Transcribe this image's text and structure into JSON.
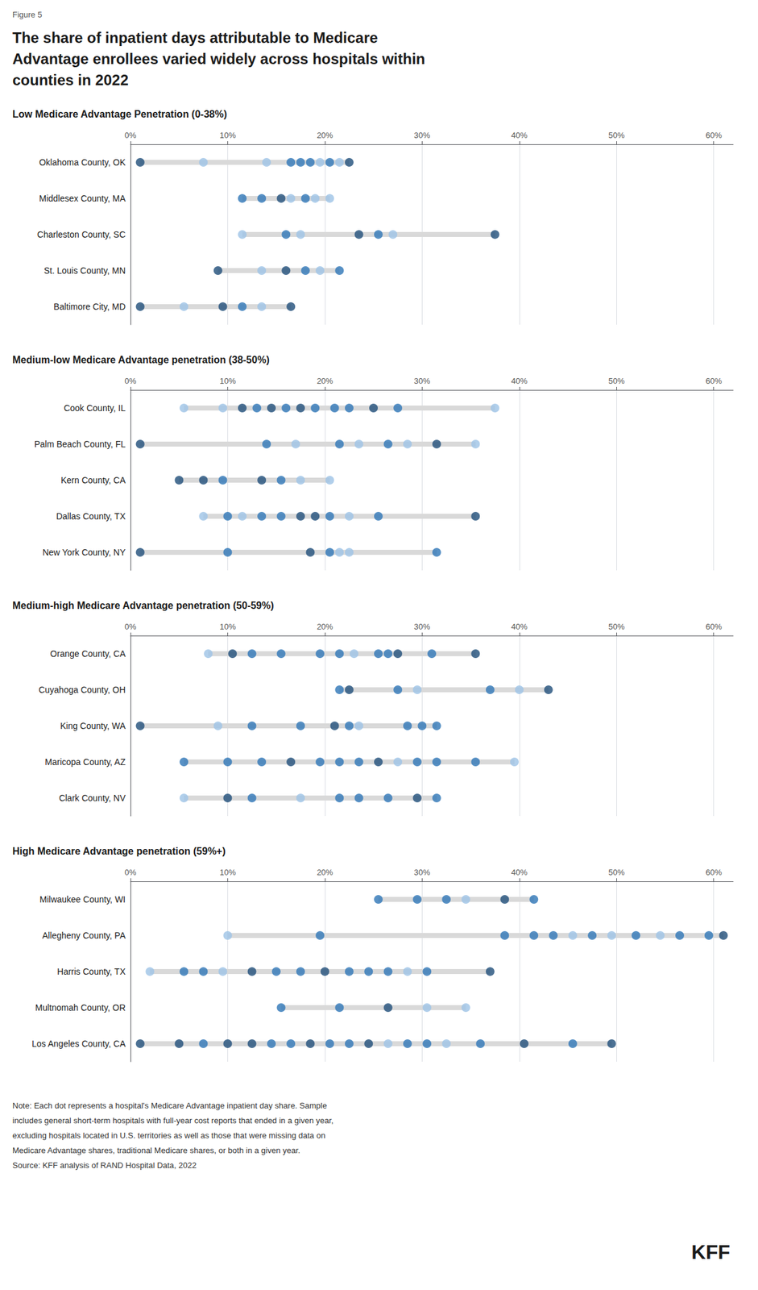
{
  "title": [
    "The share of inpatient days attributable to Medicare",
    "Advantage enrollees varied widely across hospitals within",
    "counties in 2022"
  ],
  "subtitle": "Figure 5",
  "annotations": [
    "Note: Each dot represents a hospital's Medicare Advantage inpatient day share. Sample",
    "includes general short-term hospitals with full-year cost reports that ended in a given year,",
    "excluding hospitals located in U.S. territories as well as those that were missing data on",
    "Medicare Advantage shares, traditional Medicare shares, or both in a given year.",
    "Source: KFF analysis of RAND Hospital Data, 2022",
    "KFF"
  ],
  "chart_data": [
    {
      "type": "scatter",
      "orientation": "horizontal",
      "grid": true,
      "color": "#d9d9d9",
      "title": "Low Medicare Advantage Penetration (0-38%)",
      "xlim": [
        0,
        0.62
      ],
      "xticks": [
        {
          "value": 0.0,
          "label": "0%"
        },
        {
          "value": 0.1,
          "label": "10%"
        },
        {
          "value": 0.2,
          "label": "20%"
        },
        {
          "value": 0.3,
          "label": "30%"
        },
        {
          "value": 0.4,
          "label": "40%"
        },
        {
          "value": 0.5,
          "label": "50%"
        },
        {
          "value": 0.6,
          "label": "60%"
        }
      ],
      "categories": [
        "Oklahoma County, OK",
        "Middlesex County, MA",
        "Charleston County, SC",
        "St. Louis County, MN",
        "Baltimore City, MD"
      ],
      "values": [
        [
          0.01,
          0.075,
          0.14,
          0.165,
          0.175,
          0.185,
          0.195,
          0.205,
          0.215,
          0.225
        ],
        [
          0.115,
          0.135,
          0.155,
          0.165,
          0.18,
          0.19,
          0.205
        ],
        [
          0.115,
          0.16,
          0.175,
          0.235,
          0.255,
          0.27,
          0.375
        ],
        [
          0.09,
          0.135,
          0.16,
          0.18,
          0.195,
          0.215
        ],
        [
          0.01,
          0.055,
          0.095,
          0.115,
          0.135,
          0.165
        ]
      ],
      "colors": [
        [
          "#1f4e79",
          "#9dc3e6",
          "#9dc3e6",
          "#2e75b6",
          "#2e75b6",
          "#2e75b6",
          "#9dc3e6",
          "#2e75b6",
          "#9dc3e6",
          "#1f4e79"
        ],
        [
          "#2e75b6",
          "#2e75b6",
          "#1f4e79",
          "#9dc3e6",
          "#2e75b6",
          "#9dc3e6",
          "#9dc3e6"
        ],
        [
          "#9dc3e6",
          "#2e75b6",
          "#9dc3e6",
          "#1f4e79",
          "#2e75b6",
          "#9dc3e6",
          "#1f4e79"
        ],
        [
          "#1f4e79",
          "#9dc3e6",
          "#1f4e79",
          "#2e75b6",
          "#9dc3e6",
          "#2e75b6"
        ],
        [
          "#1f4e79",
          "#9dc3e6",
          "#1f4e79",
          "#2e75b6",
          "#9dc3e6",
          "#1f4e79"
        ]
      ]
    },
    {
      "type": "scatter",
      "orientation": "horizontal",
      "grid": true,
      "color": "#d9d9d9",
      "title": "Medium-low Medicare Advantage penetration (38-50%)",
      "xlim": [
        0,
        0.62
      ],
      "xticks": [
        {
          "value": 0.0,
          "label": "0%"
        },
        {
          "value": 0.1,
          "label": "10%"
        },
        {
          "value": 0.2,
          "label": "20%"
        },
        {
          "value": 0.3,
          "label": "30%"
        },
        {
          "value": 0.4,
          "label": "40%"
        },
        {
          "value": 0.5,
          "label": "50%"
        },
        {
          "value": 0.6,
          "label": "60%"
        }
      ],
      "categories": [
        "Cook County, IL",
        "Palm Beach County, FL",
        "Kern County, CA",
        "Dallas County, TX",
        "New York County, NY"
      ],
      "values": [
        [
          0.055,
          0.095,
          0.115,
          0.13,
          0.145,
          0.16,
          0.175,
          0.19,
          0.21,
          0.225,
          0.25,
          0.275,
          0.375
        ],
        [
          0.01,
          0.14,
          0.17,
          0.215,
          0.235,
          0.265,
          0.285,
          0.315,
          0.355
        ],
        [
          0.05,
          0.075,
          0.095,
          0.135,
          0.155,
          0.175,
          0.205
        ],
        [
          0.075,
          0.1,
          0.115,
          0.135,
          0.155,
          0.175,
          0.19,
          0.205,
          0.225,
          0.255,
          0.355
        ],
        [
          0.01,
          0.1,
          0.185,
          0.205,
          0.215,
          0.225,
          0.315
        ]
      ],
      "colors": [
        [
          "#9dc3e6",
          "#9dc3e6",
          "#1f4e79",
          "#2e75b6",
          "#1f4e79",
          "#2e75b6",
          "#1f4e79",
          "#2e75b6",
          "#2e75b6",
          "#2e75b6",
          "#1f4e79",
          "#2e75b6",
          "#9dc3e6"
        ],
        [
          "#1f4e79",
          "#2e75b6",
          "#9dc3e6",
          "#2e75b6",
          "#9dc3e6",
          "#2e75b6",
          "#9dc3e6",
          "#1f4e79",
          "#9dc3e6"
        ],
        [
          "#1f4e79",
          "#1f4e79",
          "#2e75b6",
          "#1f4e79",
          "#2e75b6",
          "#9dc3e6",
          "#9dc3e6"
        ],
        [
          "#9dc3e6",
          "#2e75b6",
          "#9dc3e6",
          "#2e75b6",
          "#2e75b6",
          "#1f4e79",
          "#1f4e79",
          "#2e75b6",
          "#9dc3e6",
          "#2e75b6",
          "#1f4e79"
        ],
        [
          "#1f4e79",
          "#2e75b6",
          "#1f4e79",
          "#2e75b6",
          "#9dc3e6",
          "#9dc3e6",
          "#2e75b6"
        ]
      ]
    },
    {
      "type": "scatter",
      "orientation": "horizontal",
      "grid": true,
      "color": "#d9d9d9",
      "title": "Medium-high Medicare Advantage penetration (50-59%)",
      "xlim": [
        0,
        0.62
      ],
      "xticks": [
        {
          "value": 0.0,
          "label": "0%"
        },
        {
          "value": 0.1,
          "label": "10%"
        },
        {
          "value": 0.2,
          "label": "20%"
        },
        {
          "value": 0.3,
          "label": "30%"
        },
        {
          "value": 0.4,
          "label": "40%"
        },
        {
          "value": 0.5,
          "label": "50%"
        },
        {
          "value": 0.6,
          "label": "60%"
        }
      ],
      "categories": [
        "Orange County, CA",
        "Cuyahoga County, OH",
        "King County, WA",
        "Maricopa County, AZ",
        "Clark County, NV"
      ],
      "values": [
        [
          0.08,
          0.105,
          0.125,
          0.155,
          0.195,
          0.215,
          0.23,
          0.255,
          0.265,
          0.275,
          0.31,
          0.355
        ],
        [
          0.215,
          0.225,
          0.275,
          0.295,
          0.37,
          0.4,
          0.43
        ],
        [
          0.01,
          0.09,
          0.125,
          0.175,
          0.21,
          0.225,
          0.235,
          0.285,
          0.3,
          0.315
        ],
        [
          0.055,
          0.1,
          0.135,
          0.165,
          0.195,
          0.215,
          0.235,
          0.255,
          0.275,
          0.295,
          0.315,
          0.355,
          0.395
        ],
        [
          0.055,
          0.1,
          0.125,
          0.175,
          0.215,
          0.235,
          0.265,
          0.295,
          0.315
        ]
      ],
      "colors": [
        [
          "#9dc3e6",
          "#1f4e79",
          "#2e75b6",
          "#2e75b6",
          "#2e75b6",
          "#2e75b6",
          "#9dc3e6",
          "#2e75b6",
          "#2e75b6",
          "#1f4e79",
          "#2e75b6",
          "#1f4e79"
        ],
        [
          "#2e75b6",
          "#1f4e79",
          "#2e75b6",
          "#9dc3e6",
          "#2e75b6",
          "#9dc3e6",
          "#1f4e79"
        ],
        [
          "#1f4e79",
          "#9dc3e6",
          "#2e75b6",
          "#2e75b6",
          "#1f4e79",
          "#2e75b6",
          "#9dc3e6",
          "#2e75b6",
          "#2e75b6",
          "#2e75b6"
        ],
        [
          "#2e75b6",
          "#2e75b6",
          "#2e75b6",
          "#1f4e79",
          "#2e75b6",
          "#2e75b6",
          "#2e75b6",
          "#1f4e79",
          "#9dc3e6",
          "#2e75b6",
          "#2e75b6",
          "#2e75b6",
          "#9dc3e6"
        ],
        [
          "#9dc3e6",
          "#1f4e79",
          "#2e75b6",
          "#9dc3e6",
          "#2e75b6",
          "#2e75b6",
          "#2e75b6",
          "#1f4e79",
          "#2e75b6"
        ]
      ]
    },
    {
      "type": "scatter",
      "orientation": "horizontal",
      "grid": true,
      "color": "#d9d9d9",
      "title": "High Medicare Advantage penetration (59%+)",
      "xlim": [
        0,
        0.62
      ],
      "xticks": [
        {
          "value": 0.0,
          "label": "0%"
        },
        {
          "value": 0.1,
          "label": "10%"
        },
        {
          "value": 0.2,
          "label": "20%"
        },
        {
          "value": 0.3,
          "label": "30%"
        },
        {
          "value": 0.4,
          "label": "40%"
        },
        {
          "value": 0.5,
          "label": "50%"
        },
        {
          "value": 0.6,
          "label": "60%"
        }
      ],
      "categories": [
        "Milwaukee County, WI",
        "Allegheny County, PA",
        "Harris County, TX",
        "Multnomah County, OR",
        "Los Angeles County, CA"
      ],
      "values": [
        [
          0.255,
          0.295,
          0.325,
          0.345,
          0.385,
          0.415
        ],
        [
          0.1,
          0.195,
          0.385,
          0.415,
          0.435,
          0.455,
          0.475,
          0.495,
          0.52,
          0.545,
          0.565,
          0.595,
          0.61
        ],
        [
          0.02,
          0.055,
          0.075,
          0.095,
          0.125,
          0.15,
          0.175,
          0.2,
          0.225,
          0.245,
          0.265,
          0.285,
          0.305,
          0.37
        ],
        [
          0.155,
          0.215,
          0.265,
          0.305,
          0.345
        ],
        [
          0.01,
          0.05,
          0.075,
          0.1,
          0.125,
          0.145,
          0.165,
          0.185,
          0.205,
          0.225,
          0.245,
          0.265,
          0.285,
          0.305,
          0.325,
          0.36,
          0.405,
          0.455,
          0.495
        ]
      ],
      "colors": [
        [
          "#2e75b6",
          "#2e75b6",
          "#2e75b6",
          "#9dc3e6",
          "#1f4e79",
          "#2e75b6"
        ],
        [
          "#9dc3e6",
          "#2e75b6",
          "#2e75b6",
          "#2e75b6",
          "#2e75b6",
          "#9dc3e6",
          "#2e75b6",
          "#9dc3e6",
          "#2e75b6",
          "#9dc3e6",
          "#2e75b6",
          "#2e75b6",
          "#1f4e79"
        ],
        [
          "#9dc3e6",
          "#2e75b6",
          "#2e75b6",
          "#9dc3e6",
          "#1f4e79",
          "#2e75b6",
          "#2e75b6",
          "#1f4e79",
          "#2e75b6",
          "#2e75b6",
          "#2e75b6",
          "#9dc3e6",
          "#2e75b6",
          "#1f4e79"
        ],
        [
          "#2e75b6",
          "#2e75b6",
          "#1f4e79",
          "#9dc3e6",
          "#9dc3e6"
        ],
        [
          "#1f4e79",
          "#1f4e79",
          "#2e75b6",
          "#1f4e79",
          "#1f4e79",
          "#2e75b6",
          "#2e75b6",
          "#1f4e79",
          "#2e75b6",
          "#2e75b6",
          "#1f4e79",
          "#9dc3e6",
          "#2e75b6",
          "#2e75b6",
          "#9dc3e6",
          "#2e75b6",
          "#1f4e79",
          "#2e75b6",
          "#1f4e79"
        ]
      ]
    }
  ]
}
